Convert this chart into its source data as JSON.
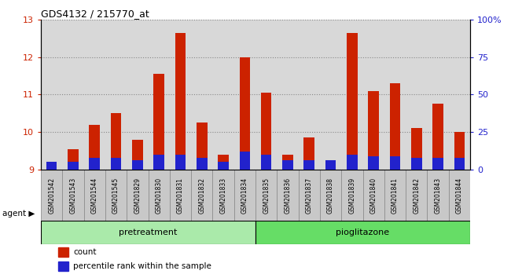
{
  "title": "GDS4132 / 215770_at",
  "samples": [
    "GSM201542",
    "GSM201543",
    "GSM201544",
    "GSM201545",
    "GSM201829",
    "GSM201830",
    "GSM201831",
    "GSM201832",
    "GSM201833",
    "GSM201834",
    "GSM201835",
    "GSM201836",
    "GSM201837",
    "GSM201838",
    "GSM201839",
    "GSM201840",
    "GSM201841",
    "GSM201842",
    "GSM201843",
    "GSM201844"
  ],
  "count_values": [
    9.2,
    9.55,
    10.2,
    10.5,
    9.8,
    11.55,
    12.65,
    10.25,
    9.4,
    12.0,
    11.05,
    9.4,
    9.85,
    9.2,
    12.65,
    11.1,
    11.3,
    10.1,
    10.75,
    10.0
  ],
  "percentile_values": [
    5,
    5,
    8,
    8,
    6,
    10,
    10,
    8,
    5,
    12,
    10,
    6,
    6,
    6,
    10,
    9,
    9,
    8,
    8,
    8
  ],
  "bar_color": "#cc2200",
  "percentile_color": "#2222cc",
  "ylim_left": [
    9,
    13
  ],
  "ylim_right": [
    0,
    100
  ],
  "yticks_left": [
    9,
    10,
    11,
    12,
    13
  ],
  "yticks_right": [
    0,
    25,
    50,
    75,
    100
  ],
  "yticklabels_right": [
    "0",
    "25",
    "50",
    "75",
    "100%"
  ],
  "grid_color": "#888888",
  "group1_label": "pretreatment",
  "group2_label": "pioglitazone",
  "group1_count": 10,
  "group2_count": 10,
  "agent_label": "agent",
  "legend_count": "count",
  "legend_percentile": "percentile rank within the sample",
  "left_tick_color": "#cc2200",
  "right_tick_color": "#2222cc",
  "plot_bg_color": "#d8d8d8",
  "group_bg1": "#aaeaaa",
  "group_bg2": "#66dd66",
  "bar_width": 0.5
}
